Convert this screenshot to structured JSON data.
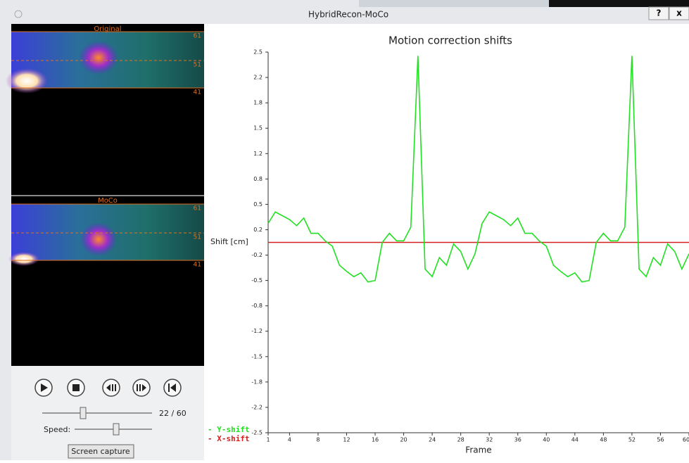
{
  "window": {
    "title": "HybridRecon-MoCo",
    "buttons": [
      "?",
      "x"
    ]
  },
  "panels": [
    {
      "label": "Original",
      "levels": [
        "61",
        "51",
        "41"
      ]
    },
    {
      "label": "MoCo",
      "levels": [
        "61",
        "51",
        "41"
      ]
    }
  ],
  "controls": {
    "frame": "22 / 60",
    "speed_label": "Speed:",
    "capture": "Screen capture"
  },
  "chart_data": {
    "type": "line",
    "title": "Motion correction shifts",
    "y_label": "Shift [cm]",
    "x_label": "Frame",
    "x": [
      1,
      2,
      3,
      4,
      5,
      6,
      7,
      8,
      9,
      10,
      11,
      12,
      13,
      14,
      15,
      16,
      17,
      18,
      19,
      20,
      21,
      22,
      23,
      24,
      25,
      26,
      27,
      28,
      29,
      30,
      31,
      32,
      33,
      34,
      35,
      36,
      37,
      38,
      39,
      40,
      41,
      42,
      43,
      44,
      45,
      46,
      47,
      48,
      49,
      50,
      51,
      52,
      53,
      54,
      55,
      56,
      57,
      58,
      59,
      60
    ],
    "series": [
      {
        "name": "- Y-shift",
        "color": "#22e022",
        "values": [
          0.25,
          0.4,
          0.35,
          0.3,
          0.22,
          0.32,
          0.12,
          0.12,
          0.02,
          -0.05,
          -0.3,
          -0.38,
          -0.45,
          -0.4,
          -0.52,
          -0.5,
          0.0,
          0.12,
          0.02,
          0.02,
          0.2,
          2.45,
          -0.35,
          -0.45,
          -0.2,
          -0.3,
          -0.02,
          -0.12,
          -0.35,
          -0.15,
          0.25,
          0.4,
          0.35,
          0.3,
          0.22,
          0.32,
          0.12,
          0.12,
          0.02,
          -0.05,
          -0.3,
          -0.38,
          -0.45,
          -0.4,
          -0.52,
          -0.5,
          0.0,
          0.12,
          0.02,
          0.02,
          0.2,
          2.45,
          -0.35,
          -0.45,
          -0.2,
          -0.3,
          -0.02,
          -0.12,
          -0.35,
          -0.15
        ]
      },
      {
        "name": "- X-shift",
        "color": "#d42020",
        "values": [
          0,
          0,
          0,
          0,
          0,
          0,
          0,
          0,
          0,
          0,
          0,
          0,
          0,
          0,
          0,
          0,
          0,
          0,
          0,
          0,
          0,
          0,
          0,
          0,
          0,
          0,
          0,
          0,
          0,
          0,
          0,
          0,
          0,
          0,
          0,
          0,
          0,
          0,
          0,
          0,
          0,
          0,
          0,
          0,
          0,
          0,
          0,
          0,
          0,
          0,
          0,
          0,
          0,
          0,
          0,
          0,
          0,
          0,
          0,
          0
        ]
      }
    ],
    "xlim": [
      1,
      60
    ],
    "xticks": [
      1,
      4,
      8,
      12,
      16,
      20,
      24,
      28,
      32,
      36,
      40,
      44,
      48,
      52,
      56,
      60
    ],
    "ylim": [
      -2.5,
      2.5
    ],
    "yticks": [
      2.5,
      {
        "value": 2.1667,
        "label": "2.2"
      },
      {
        "value": 1.8333,
        "label": "1.8"
      },
      1.5,
      {
        "value": 1.1667,
        "label": "1.2"
      },
      {
        "value": 0.8333,
        "label": "0.8"
      },
      0.5,
      {
        "value": 0.1667,
        "label": "0.2"
      },
      {
        "value": -0.1667,
        "label": "-0.2"
      },
      -0.5,
      {
        "value": -0.8333,
        "label": "-0.8"
      },
      {
        "value": -1.1667,
        "label": "-1.2"
      },
      -1.5,
      {
        "value": -1.8333,
        "label": "-1.8"
      },
      {
        "value": -2.1667,
        "label": "-2.2"
      },
      -2.5
    ],
    "grid": false
  }
}
